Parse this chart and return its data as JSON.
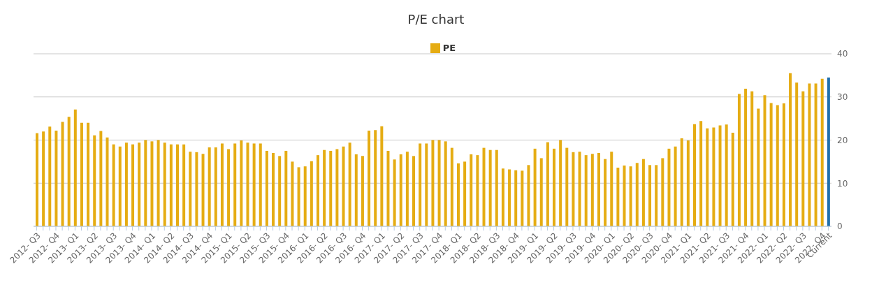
{
  "chart_data": {
    "type": "bar",
    "title": "P/E chart",
    "categories": [
      "2012- Q3",
      null,
      null,
      "2012- Q4",
      null,
      null,
      "2013- Q1",
      null,
      null,
      "2013- Q2",
      null,
      null,
      "2013- Q3",
      null,
      null,
      "2013- Q4",
      null,
      null,
      "2014- Q1",
      null,
      null,
      "2014- Q2",
      null,
      null,
      "2014- Q3",
      null,
      null,
      "2014- Q4",
      null,
      null,
      "2015- Q1",
      null,
      null,
      "2015- Q2",
      null,
      null,
      "2015- Q3",
      null,
      null,
      "2015- Q4",
      null,
      null,
      "2016- Q1",
      null,
      null,
      "2016- Q2",
      null,
      null,
      "2016- Q3",
      null,
      null,
      "2016- Q4",
      null,
      null,
      "2017- Q1",
      null,
      null,
      "2017- Q2",
      null,
      null,
      "2017- Q3",
      null,
      null,
      "2017- Q4",
      null,
      null,
      "2018- Q1",
      null,
      null,
      "2018- Q2",
      null,
      null,
      "2018- Q3",
      null,
      null,
      "2018- Q4",
      null,
      null,
      "2019- Q1",
      null,
      null,
      "2019- Q2",
      null,
      null,
      "2019- Q3",
      null,
      null,
      "2019- Q4",
      null,
      null,
      "2020- Q1",
      null,
      null,
      "2020- Q2",
      null,
      null,
      "2020- Q3",
      null,
      null,
      "2020- Q4",
      null,
      null,
      "2021- Q1",
      null,
      null,
      "2021- Q2",
      null,
      null,
      "2021- Q3",
      null,
      null,
      "2021- Q4",
      null,
      null,
      "2022- Q1",
      null,
      null,
      "2022- Q2",
      null,
      null,
      "2022- Q3",
      null,
      null,
      "2022- Q4",
      "Current"
    ],
    "series": [
      {
        "name": "PE",
        "color": "#e5ac13",
        "values": [
          21.6,
          22.0,
          23.1,
          22.2,
          24.2,
          25.4,
          27.1,
          24.0,
          24.0,
          21.1,
          22.1,
          20.6,
          19.0,
          18.5,
          19.4,
          19.0,
          19.4,
          20.0,
          19.7,
          20.0,
          19.4,
          19.0,
          19.0,
          19.0,
          17.3,
          17.2,
          16.8,
          18.3,
          18.3,
          19.2,
          17.9,
          19.2,
          19.9,
          19.4,
          19.2,
          19.2,
          17.5,
          17.0,
          16.3,
          17.5,
          15.0,
          13.7,
          13.9,
          15.1,
          16.5,
          17.7,
          17.5,
          17.9,
          18.5,
          19.4,
          16.7,
          16.3,
          22.2,
          22.3,
          23.2,
          17.5,
          15.5,
          16.7,
          17.3,
          16.3,
          19.2,
          19.2,
          20.0,
          20.0,
          19.7,
          18.2,
          14.6,
          15.0,
          16.7,
          16.5,
          18.2,
          17.7,
          17.7,
          13.4,
          13.2,
          13.0,
          12.9,
          14.2,
          18.0,
          15.8,
          19.5,
          18.0,
          20.0,
          18.2,
          17.2,
          17.3,
          16.5,
          16.8,
          17.0,
          15.6,
          17.3,
          13.6,
          14.1,
          13.9,
          14.7,
          15.6,
          14.2,
          14.2,
          15.8,
          18.0,
          18.5,
          20.4,
          19.9,
          23.7,
          24.4,
          22.7,
          22.9,
          23.4,
          23.6,
          21.7,
          30.7,
          31.9,
          31.3,
          27.3,
          30.4,
          28.6,
          28.1,
          28.5,
          35.5,
          33.3,
          31.3,
          33.1,
          33.1,
          34.2,
          34.5
        ],
        "colors": [
          "#e5ac13",
          "#e5ac13",
          "#e5ac13",
          "#e5ac13",
          "#e5ac13",
          "#e5ac13",
          "#e5ac13",
          "#e5ac13",
          "#e5ac13",
          "#e5ac13",
          "#e5ac13",
          "#e5ac13",
          "#e5ac13",
          "#e5ac13",
          "#e5ac13",
          "#e5ac13",
          "#e5ac13",
          "#e5ac13",
          "#e5ac13",
          "#e5ac13",
          "#e5ac13",
          "#e5ac13",
          "#e5ac13",
          "#e5ac13",
          "#e5ac13",
          "#e5ac13",
          "#e5ac13",
          "#e5ac13",
          "#e5ac13",
          "#e5ac13",
          "#e5ac13",
          "#e5ac13",
          "#e5ac13",
          "#e5ac13",
          "#e5ac13",
          "#e5ac13",
          "#e5ac13",
          "#e5ac13",
          "#e5ac13",
          "#e5ac13",
          "#e5ac13",
          "#e5ac13",
          "#e5ac13",
          "#e5ac13",
          "#e5ac13",
          "#e5ac13",
          "#e5ac13",
          "#e5ac13",
          "#e5ac13",
          "#e5ac13",
          "#e5ac13",
          "#e5ac13",
          "#e5ac13",
          "#e5ac13",
          "#e5ac13",
          "#e5ac13",
          "#e5ac13",
          "#e5ac13",
          "#e5ac13",
          "#e5ac13",
          "#e5ac13",
          "#e5ac13",
          "#e5ac13",
          "#e5ac13",
          "#e5ac13",
          "#e5ac13",
          "#e5ac13",
          "#e5ac13",
          "#e5ac13",
          "#e5ac13",
          "#e5ac13",
          "#e5ac13",
          "#e5ac13",
          "#e5ac13",
          "#e5ac13",
          "#e5ac13",
          "#e5ac13",
          "#e5ac13",
          "#e5ac13",
          "#e5ac13",
          "#e5ac13",
          "#e5ac13",
          "#e5ac13",
          "#e5ac13",
          "#e5ac13",
          "#e5ac13",
          "#e5ac13",
          "#e5ac13",
          "#e5ac13",
          "#e5ac13",
          "#e5ac13",
          "#e5ac13",
          "#e5ac13",
          "#e5ac13",
          "#e5ac13",
          "#e5ac13",
          "#e5ac13",
          "#e5ac13",
          "#e5ac13",
          "#e5ac13",
          "#e5ac13",
          "#e5ac13",
          "#e5ac13",
          "#e5ac13",
          "#e5ac13",
          "#e5ac13",
          "#e5ac13",
          "#e5ac13",
          "#e5ac13",
          "#e5ac13",
          "#e5ac13",
          "#e5ac13",
          "#e5ac13",
          "#e5ac13",
          "#e5ac13",
          "#e5ac13",
          "#e5ac13",
          "#e5ac13",
          "#e5ac13",
          "#e5ac13",
          "#e5ac13",
          "#e5ac13",
          "#e5ac13",
          "#e5ac13",
          "#1f6fad"
        ]
      }
    ],
    "ylim": [
      0,
      40
    ],
    "yticks": [
      0,
      10,
      20,
      30,
      40
    ],
    "grid": "y",
    "legend": "top"
  }
}
